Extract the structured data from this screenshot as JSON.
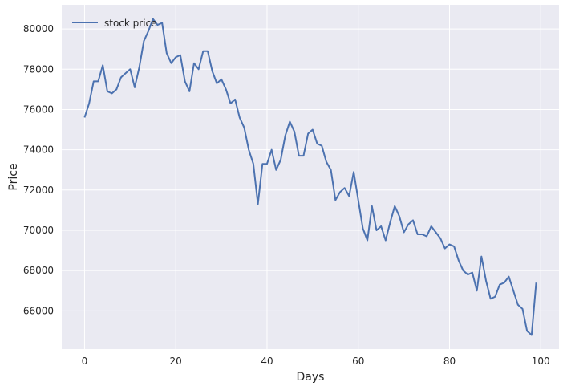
{
  "chart_data": {
    "type": "line",
    "title": "",
    "xlabel": "Days",
    "ylabel": "Price",
    "xlim": [
      -5,
      104
    ],
    "ylim": [
      64100,
      81200
    ],
    "xticks": [
      0,
      20,
      40,
      60,
      80,
      100
    ],
    "yticks": [
      66000,
      68000,
      70000,
      72000,
      74000,
      76000,
      78000,
      80000
    ],
    "grid": true,
    "legend_position": "top-left",
    "colors": {
      "background": "#eaeaf2",
      "grid": "#ffffff",
      "line": "#4c72b0"
    },
    "series": [
      {
        "name": "stock price",
        "x": [
          0,
          1,
          2,
          3,
          4,
          5,
          6,
          7,
          8,
          9,
          10,
          11,
          12,
          13,
          14,
          15,
          16,
          17,
          18,
          19,
          20,
          21,
          22,
          23,
          24,
          25,
          26,
          27,
          28,
          29,
          30,
          31,
          32,
          33,
          34,
          35,
          36,
          37,
          38,
          39,
          40,
          41,
          42,
          43,
          44,
          45,
          46,
          47,
          48,
          49,
          50,
          51,
          52,
          53,
          54,
          55,
          56,
          57,
          58,
          59,
          60,
          61,
          62,
          63,
          64,
          65,
          66,
          67,
          68,
          69,
          70,
          71,
          72,
          73,
          74,
          75,
          76,
          77,
          78,
          79,
          80,
          81,
          82,
          83,
          84,
          85,
          86,
          87,
          88,
          89,
          90,
          91,
          92,
          93,
          94,
          95,
          96,
          97,
          98,
          99
        ],
        "values": [
          75600,
          76300,
          77400,
          77400,
          78200,
          76900,
          76800,
          77000,
          77600,
          77800,
          78000,
          77100,
          78100,
          79400,
          79900,
          80500,
          80200,
          80300,
          78800,
          78300,
          78600,
          78700,
          77400,
          76900,
          78300,
          78000,
          78900,
          78900,
          77900,
          77300,
          77500,
          77000,
          76300,
          76500,
          75600,
          75100,
          74000,
          73300,
          71300,
          73300,
          73300,
          74000,
          73000,
          73500,
          74700,
          75400,
          74900,
          73700,
          73700,
          74800,
          75000,
          74300,
          74200,
          73400,
          73000,
          71500,
          71900,
          72100,
          71700,
          72900,
          71500,
          70100,
          69500,
          71200,
          70000,
          70200,
          69500,
          70400,
          71200,
          70700,
          69900,
          70300,
          70500,
          69800,
          69800,
          69700,
          70200,
          69900,
          69600,
          69100,
          69300,
          69200,
          68500,
          68000,
          67800,
          67900,
          67000,
          68700,
          67500,
          66600,
          66700,
          67300,
          67400,
          67700,
          67000,
          66300,
          66100,
          65000,
          64800,
          67400
        ]
      }
    ]
  }
}
